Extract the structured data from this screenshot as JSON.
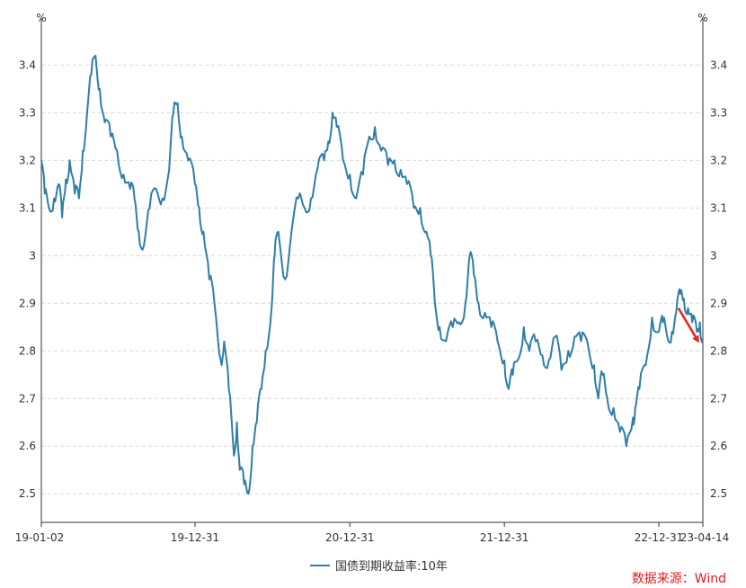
{
  "chart_data": {
    "type": "line",
    "title": "",
    "unit_left": "%",
    "unit_right": "%",
    "y_ticks": [
      "2.5",
      "2.6",
      "2.7",
      "2.8",
      "2.9",
      "3",
      "3.1",
      "3.2",
      "3.3",
      "3.4"
    ],
    "ylim": [
      2.44,
      3.48
    ],
    "x_ticks": [
      {
        "label": "19-01-02",
        "date": "2019-01-02"
      },
      {
        "label": "19-12-31",
        "date": "2019-12-31"
      },
      {
        "label": "20-12-31",
        "date": "2020-12-31"
      },
      {
        "label": "21-12-31",
        "date": "2021-12-31"
      },
      {
        "label": "22-12-31",
        "date": "2022-12-31"
      },
      {
        "label": "23-04-14",
        "date": "2023-04-14"
      }
    ],
    "xlim": [
      "2019-01-02",
      "2023-04-14"
    ],
    "grid": true,
    "legend_position": "bottom",
    "series": [
      {
        "name": "国债到期收益率:10年",
        "color": "#2e7ea8",
        "x": [
          "2019-01-02",
          "2019-01-10",
          "2019-01-20",
          "2019-02-01",
          "2019-02-12",
          "2019-02-20",
          "2019-03-01",
          "2019-03-10",
          "2019-03-22",
          "2019-04-01",
          "2019-04-10",
          "2019-04-20",
          "2019-04-30",
          "2019-05-10",
          "2019-05-20",
          "2019-06-01",
          "2019-06-15",
          "2019-06-30",
          "2019-07-15",
          "2019-07-31",
          "2019-08-10",
          "2019-08-20",
          "2019-09-01",
          "2019-09-15",
          "2019-09-30",
          "2019-10-15",
          "2019-10-31",
          "2019-11-10",
          "2019-11-20",
          "2019-11-30",
          "2019-12-15",
          "2019-12-31",
          "2020-01-10",
          "2020-01-20",
          "2020-02-03",
          "2020-02-15",
          "2020-03-01",
          "2020-03-09",
          "2020-03-20",
          "2020-04-01",
          "2020-04-08",
          "2020-04-15",
          "2020-04-25",
          "2020-05-05",
          "2020-05-15",
          "2020-05-25",
          "2020-06-05",
          "2020-06-15",
          "2020-06-30",
          "2020-07-06",
          "2020-07-15",
          "2020-07-31",
          "2020-08-15",
          "2020-08-31",
          "2020-09-15",
          "2020-09-30",
          "2020-10-15",
          "2020-10-31",
          "2020-11-10",
          "2020-11-20",
          "2020-11-30",
          "2020-12-15",
          "2020-12-31",
          "2021-01-15",
          "2021-01-31",
          "2021-02-15",
          "2021-02-28",
          "2021-03-15",
          "2021-03-31",
          "2021-04-15",
          "2021-04-30",
          "2021-05-15",
          "2021-05-31",
          "2021-06-15",
          "2021-06-30",
          "2021-07-10",
          "2021-07-20",
          "2021-07-31",
          "2021-08-15",
          "2021-08-31",
          "2021-09-15",
          "2021-09-30",
          "2021-10-10",
          "2021-10-20",
          "2021-10-31",
          "2021-11-15",
          "2021-11-30",
          "2021-12-15",
          "2021-12-31",
          "2022-01-10",
          "2022-01-20",
          "2022-01-31",
          "2022-02-15",
          "2022-02-28",
          "2022-03-15",
          "2022-03-31",
          "2022-04-15",
          "2022-04-30",
          "2022-05-15",
          "2022-05-31",
          "2022-06-15",
          "2022-06-30",
          "2022-07-15",
          "2022-07-31",
          "2022-08-10",
          "2022-08-20",
          "2022-08-31",
          "2022-09-15",
          "2022-09-30",
          "2022-10-15",
          "2022-10-31",
          "2022-11-05",
          "2022-11-15",
          "2022-11-30",
          "2022-12-15",
          "2022-12-31",
          "2023-01-10",
          "2023-01-20",
          "2023-01-31",
          "2023-02-10",
          "2023-02-20",
          "2023-02-28",
          "2023-03-10",
          "2023-03-20",
          "2023-03-31",
          "2023-04-07",
          "2023-04-14"
        ],
        "values": [
          3.2,
          3.13,
          3.1,
          3.12,
          3.15,
          3.08,
          3.16,
          3.2,
          3.13,
          3.12,
          3.22,
          3.3,
          3.38,
          3.42,
          3.35,
          3.28,
          3.25,
          3.22,
          3.17,
          3.14,
          3.12,
          3.05,
          3.02,
          3.1,
          3.14,
          3.12,
          3.18,
          3.3,
          3.32,
          3.25,
          3.2,
          3.15,
          3.1,
          3.05,
          2.95,
          2.9,
          2.78,
          2.82,
          2.72,
          2.58,
          2.65,
          2.55,
          2.52,
          2.5,
          2.6,
          2.65,
          2.72,
          2.8,
          2.9,
          3.0,
          3.05,
          2.95,
          3.05,
          3.12,
          3.1,
          3.12,
          3.18,
          3.2,
          3.24,
          3.3,
          3.27,
          3.2,
          3.17,
          3.12,
          3.17,
          3.25,
          3.27,
          3.22,
          3.19,
          3.2,
          3.18,
          3.15,
          3.1,
          3.1,
          3.05,
          3.0,
          2.9,
          2.85,
          2.82,
          2.85,
          2.86,
          2.9,
          3.0,
          2.96,
          2.9,
          2.88,
          2.85,
          2.82,
          2.78,
          2.72,
          2.75,
          2.78,
          2.85,
          2.8,
          2.82,
          2.79,
          2.78,
          2.83,
          2.76,
          2.8,
          2.83,
          2.82,
          2.82,
          2.77,
          2.7,
          2.75,
          2.7,
          2.68,
          2.63,
          2.6,
          2.66,
          2.68,
          2.72,
          2.77,
          2.87,
          2.84,
          2.86,
          2.83,
          2.84,
          2.88,
          2.92,
          2.91,
          2.89,
          2.86,
          2.84,
          2.86,
          2.82
        ]
      }
    ],
    "annotations": [
      {
        "type": "arrow",
        "color": "#e8231c",
        "from_date": "2023-02-15",
        "from_value": 2.89,
        "to_date": "2023-04-03",
        "to_value": 2.82
      }
    ]
  },
  "source_note": "数据来源：Wind"
}
